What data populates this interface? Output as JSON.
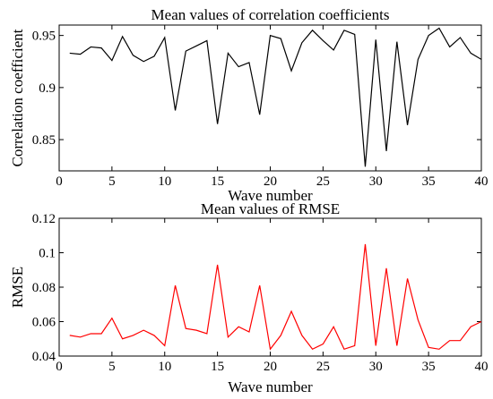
{
  "chart_data": [
    {
      "type": "line",
      "title": "Mean values of correlation coefficients",
      "xlabel": "Wave number",
      "ylabel": "Correlation coefficient",
      "xlim": [
        0,
        40
      ],
      "ylim": [
        0.82,
        0.96
      ],
      "xticks": [
        "0",
        "5",
        "10",
        "15",
        "20",
        "25",
        "30",
        "35",
        "40"
      ],
      "yticks": [
        "0.85",
        "0.9",
        "0.95"
      ],
      "grid": false,
      "series": [
        {
          "color": "#000000",
          "x": [
            1,
            2,
            3,
            4,
            5,
            6,
            7,
            8,
            9,
            10,
            11,
            12,
            13,
            14,
            15,
            16,
            17,
            18,
            19,
            20,
            21,
            22,
            23,
            24,
            25,
            26,
            27,
            28,
            29,
            30,
            31,
            32,
            33,
            34,
            35,
            36,
            37,
            38,
            39,
            40
          ],
          "values": [
            0.933,
            0.932,
            0.939,
            0.938,
            0.926,
            0.949,
            0.931,
            0.925,
            0.93,
            0.948,
            0.878,
            0.935,
            0.94,
            0.945,
            0.865,
            0.933,
            0.92,
            0.924,
            0.874,
            0.95,
            0.947,
            0.916,
            0.943,
            0.955,
            0.945,
            0.936,
            0.955,
            0.951,
            0.824,
            0.946,
            0.839,
            0.944,
            0.864,
            0.927,
            0.95,
            0.957,
            0.939,
            0.948,
            0.933,
            0.927
          ]
        }
      ]
    },
    {
      "type": "line",
      "title": "Mean values of RMSE",
      "xlabel": "Wave number",
      "ylabel": "RMSE",
      "xlim": [
        0,
        40
      ],
      "ylim": [
        0.04,
        0.12
      ],
      "xticks": [
        "0",
        "5",
        "10",
        "15",
        "20",
        "25",
        "30",
        "35",
        "40"
      ],
      "yticks": [
        "0.04",
        "0.06",
        "0.08",
        "0.1",
        "0.12"
      ],
      "grid": false,
      "series": [
        {
          "color": "#ff0000",
          "x": [
            1,
            2,
            3,
            4,
            5,
            6,
            7,
            8,
            9,
            10,
            11,
            12,
            13,
            14,
            15,
            16,
            17,
            18,
            19,
            20,
            21,
            22,
            23,
            24,
            25,
            26,
            27,
            28,
            29,
            30,
            31,
            32,
            33,
            34,
            35,
            36,
            37,
            38,
            39,
            40
          ],
          "values": [
            0.052,
            0.051,
            0.053,
            0.053,
            0.062,
            0.05,
            0.052,
            0.055,
            0.052,
            0.046,
            0.081,
            0.056,
            0.055,
            0.053,
            0.093,
            0.051,
            0.057,
            0.054,
            0.081,
            0.044,
            0.052,
            0.066,
            0.052,
            0.044,
            0.047,
            0.057,
            0.044,
            0.046,
            0.105,
            0.046,
            0.091,
            0.046,
            0.085,
            0.061,
            0.045,
            0.044,
            0.049,
            0.049,
            0.057,
            0.06
          ]
        }
      ]
    }
  ]
}
